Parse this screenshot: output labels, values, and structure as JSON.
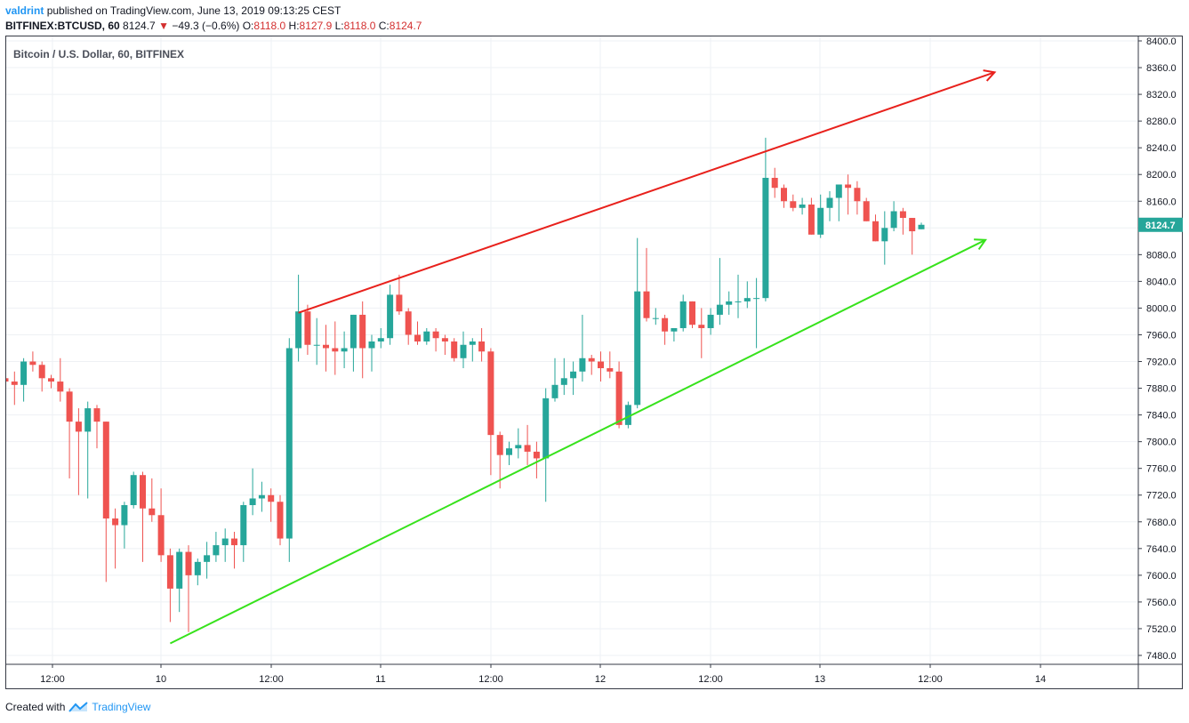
{
  "header": {
    "author": "valdrint",
    "published_text": "published on TradingView.com, June 13, 2019 09:13:25 CEST",
    "symbol": "BITFINEX:BTCUSD, 60",
    "last": "8124.7",
    "change": "−49.3 (−0.6%)",
    "o_label": "O:",
    "o_value": "8118.0",
    "h_label": "H:",
    "h_value": "8127.9",
    "l_label": "L:",
    "l_value": "8118.0",
    "c_label": "C:",
    "c_value": "8124.7"
  },
  "chart_title": "Bitcoin / U.S. Dollar, 60, BITFINEX",
  "price_badge": "8124.7",
  "footer": {
    "created_with": "Created with",
    "brand": "TradingView"
  },
  "colors": {
    "up": "#26a69a",
    "down": "#ef5350",
    "resistance": "#e8211c",
    "support": "#37e21c",
    "grid": "#eef1f4"
  },
  "chart_data": {
    "type": "candlestick",
    "interval": "60",
    "ylim": [
      7460,
      8410
    ],
    "y_ticks": [
      "8400.0",
      "8360.0",
      "8320.0",
      "8280.0",
      "8240.0",
      "8200.0",
      "8160.0",
      "8120.0",
      "8080.0",
      "8040.0",
      "8000.0",
      "7960.0",
      "7920.0",
      "7880.0",
      "7840.0",
      "7800.0",
      "7760.0",
      "7720.0",
      "7680.0",
      "7640.0",
      "7600.0",
      "7560.0",
      "7520.0",
      "7480.0"
    ],
    "x_ticks": [
      "12:00",
      "10",
      "12:00",
      "11",
      "12:00",
      "12",
      "12:00",
      "13",
      "12:00",
      "14"
    ],
    "candles": [
      [
        7895,
        7900,
        7875,
        7890
      ],
      [
        7890,
        7905,
        7855,
        7885
      ],
      [
        7885,
        7925,
        7860,
        7920
      ],
      [
        7920,
        7935,
        7905,
        7915
      ],
      [
        7915,
        7920,
        7875,
        7895
      ],
      [
        7895,
        7900,
        7880,
        7890
      ],
      [
        7890,
        7925,
        7860,
        7875
      ],
      [
        7875,
        7880,
        7745,
        7830
      ],
      [
        7830,
        7850,
        7720,
        7815
      ],
      [
        7815,
        7860,
        7715,
        7850
      ],
      [
        7850,
        7855,
        7790,
        7830
      ],
      [
        7830,
        7830,
        7590,
        7685
      ],
      [
        7685,
        7700,
        7610,
        7675
      ],
      [
        7675,
        7710,
        7640,
        7705
      ],
      [
        7705,
        7755,
        7700,
        7750
      ],
      [
        7750,
        7755,
        7620,
        7700
      ],
      [
        7700,
        7745,
        7680,
        7690
      ],
      [
        7690,
        7730,
        7620,
        7630
      ],
      [
        7630,
        7640,
        7530,
        7580
      ],
      [
        7580,
        7640,
        7545,
        7635
      ],
      [
        7635,
        7645,
        7515,
        7600
      ],
      [
        7600,
        7625,
        7585,
        7620
      ],
      [
        7620,
        7650,
        7595,
        7630
      ],
      [
        7630,
        7665,
        7620,
        7645
      ],
      [
        7645,
        7670,
        7620,
        7655
      ],
      [
        7655,
        7665,
        7610,
        7645
      ],
      [
        7645,
        7710,
        7620,
        7705
      ],
      [
        7705,
        7760,
        7690,
        7715
      ],
      [
        7715,
        7740,
        7695,
        7720
      ],
      [
        7720,
        7730,
        7680,
        7710
      ],
      [
        7710,
        7720,
        7645,
        7655
      ],
      [
        7655,
        7955,
        7620,
        7940
      ],
      [
        7940,
        8050,
        7920,
        7995
      ],
      [
        7995,
        8005,
        7930,
        7945
      ],
      [
        7945,
        7985,
        7915,
        7945
      ],
      [
        7945,
        7975,
        7905,
        7940
      ],
      [
        7940,
        7980,
        7900,
        7935
      ],
      [
        7935,
        7965,
        7910,
        7940
      ],
      [
        7940,
        7990,
        7905,
        7990
      ],
      [
        7990,
        8010,
        7895,
        7940
      ],
      [
        7940,
        7960,
        7905,
        7950
      ],
      [
        7950,
        7970,
        7940,
        7955
      ],
      [
        7955,
        8035,
        7945,
        8020
      ],
      [
        8020,
        8050,
        7990,
        7995
      ],
      [
        7995,
        8000,
        7945,
        7960
      ],
      [
        7960,
        7980,
        7945,
        7950
      ],
      [
        7950,
        7970,
        7945,
        7965
      ],
      [
        7965,
        7970,
        7935,
        7955
      ],
      [
        7955,
        7960,
        7930,
        7950
      ],
      [
        7950,
        7955,
        7920,
        7925
      ],
      [
        7925,
        7965,
        7910,
        7945
      ],
      [
        7945,
        7955,
        7920,
        7950
      ],
      [
        7950,
        7970,
        7920,
        7935
      ],
      [
        7935,
        7940,
        7750,
        7810
      ],
      [
        7810,
        7815,
        7730,
        7780
      ],
      [
        7780,
        7800,
        7765,
        7790
      ],
      [
        7790,
        7820,
        7775,
        7795
      ],
      [
        7795,
        7825,
        7765,
        7785
      ],
      [
        7785,
        7800,
        7745,
        7775
      ],
      [
        7775,
        7880,
        7710,
        7865
      ],
      [
        7865,
        7925,
        7860,
        7885
      ],
      [
        7885,
        7925,
        7870,
        7895
      ],
      [
        7895,
        7920,
        7870,
        7905
      ],
      [
        7905,
        7990,
        7890,
        7925
      ],
      [
        7925,
        7930,
        7900,
        7920
      ],
      [
        7920,
        7935,
        7890,
        7910
      ],
      [
        7910,
        7935,
        7895,
        7905
      ],
      [
        7905,
        7920,
        7820,
        7825
      ],
      [
        7825,
        7860,
        7820,
        7855
      ],
      [
        7855,
        8105,
        7850,
        8025
      ],
      [
        8025,
        8090,
        7980,
        7985
      ],
      [
        7985,
        8000,
        7975,
        7985
      ],
      [
        7985,
        7990,
        7945,
        7965
      ],
      [
        7965,
        7970,
        7950,
        7970
      ],
      [
        7970,
        8020,
        7965,
        8010
      ],
      [
        8010,
        8010,
        7970,
        7975
      ],
      [
        7975,
        8000,
        7925,
        7970
      ],
      [
        7970,
        8000,
        7960,
        7990
      ],
      [
        7990,
        8075,
        7975,
        8005
      ],
      [
        8005,
        8025,
        7990,
        8010
      ],
      [
        8010,
        8050,
        7985,
        8010
      ],
      [
        8010,
        8040,
        8000,
        8015
      ],
      [
        8015,
        8045,
        7940,
        8015
      ],
      [
        8015,
        8255,
        8010,
        8195
      ],
      [
        8195,
        8210,
        8165,
        8180
      ],
      [
        8180,
        8185,
        8150,
        8160
      ],
      [
        8160,
        8170,
        8145,
        8150
      ],
      [
        8150,
        8165,
        8140,
        8155
      ],
      [
        8155,
        8165,
        8110,
        8110
      ],
      [
        8110,
        8170,
        8105,
        8150
      ],
      [
        8150,
        8175,
        8130,
        8165
      ],
      [
        8165,
        8180,
        8130,
        8185
      ],
      [
        8185,
        8200,
        8140,
        8180
      ],
      [
        8180,
        8190,
        8140,
        8160
      ],
      [
        8160,
        8165,
        8130,
        8130
      ],
      [
        8130,
        8140,
        8100,
        8100
      ],
      [
        8100,
        8145,
        8065,
        8120
      ],
      [
        8120,
        8160,
        8115,
        8145
      ],
      [
        8145,
        8150,
        8110,
        8135
      ],
      [
        8135,
        8135,
        8080,
        8115
      ],
      [
        8118,
        8127.9,
        8118,
        8124.7
      ]
    ],
    "trendlines": [
      {
        "name": "resistance",
        "color": "#e8211c",
        "from": [
          32,
          7993
        ],
        "to": [
          108,
          8353
        ],
        "arrow": true
      },
      {
        "name": "support",
        "color": "#37e21c",
        "from": [
          18,
          7498
        ],
        "to": [
          107,
          8102
        ],
        "arrow": true
      }
    ]
  }
}
